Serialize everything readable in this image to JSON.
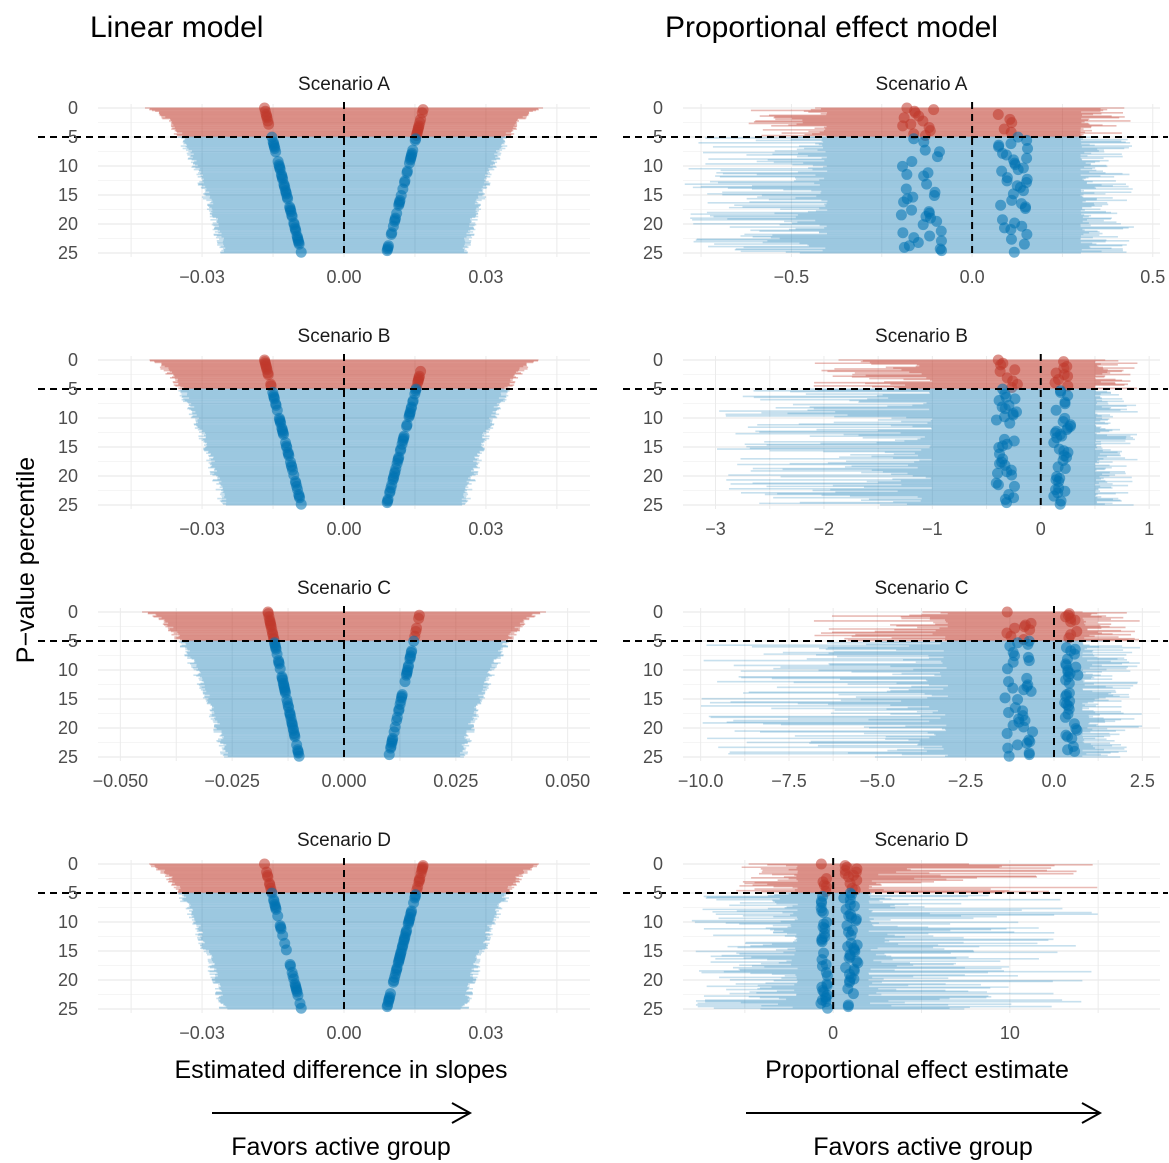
{
  "column_titles": [
    "Linear model",
    "Proportional effect model"
  ],
  "y_axis_title": "P−value percentile",
  "x_axis_titles": [
    "Estimated difference in slopes",
    "Proportional effect estimate"
  ],
  "favors_label": "Favors active group",
  "colors": {
    "significant": "#c0392b",
    "nonsignificant": "#0072b2",
    "grid": "#ebebeb"
  },
  "chart_data": [
    {
      "type": "scatter",
      "model": "Linear model",
      "title": "Scenario A",
      "xlim": [
        -0.052,
        0.052
      ],
      "ylim": [
        0,
        25
      ],
      "y_reversed": true,
      "x_ticks": [
        {
          "v": -0.03,
          "label": "−0.03"
        },
        {
          "v": 0,
          "label": "0.00"
        },
        {
          "v": 0.03,
          "label": "0.03"
        }
      ],
      "y_ticks": [
        0,
        5,
        10,
        15,
        20,
        25
      ],
      "threshold_percentile": 5,
      "null_value": 0,
      "estimate_centers": [
        -0.009,
        0.009
      ],
      "interval_halfwidth_at_25": 0.0255,
      "interval_halfwidth_at_0": 0.042
    },
    {
      "type": "scatter",
      "model": "Proportional effect model",
      "title": "Scenario A",
      "xlim": [
        -0.8,
        0.52
      ],
      "ylim": [
        0,
        25
      ],
      "y_reversed": true,
      "x_ticks": [
        {
          "v": -0.5,
          "label": "−0.5"
        },
        {
          "v": 0,
          "label": "0.0"
        },
        {
          "v": 0.5,
          "label": "0.5"
        }
      ],
      "y_ticks": [
        0,
        5,
        10,
        15,
        20,
        25
      ],
      "threshold_percentile": 5,
      "null_value": 0,
      "estimate_centers": [
        -0.14,
        0.11
      ],
      "interval_low_range": [
        -0.8,
        -0.4
      ],
      "interval_high_range": [
        0.3,
        0.45
      ]
    },
    {
      "type": "scatter",
      "model": "Linear model",
      "title": "Scenario B",
      "xlim": [
        -0.052,
        0.052
      ],
      "ylim": [
        0,
        25
      ],
      "y_reversed": true,
      "x_ticks": [
        {
          "v": -0.03,
          "label": "−0.03"
        },
        {
          "v": 0,
          "label": "0.00"
        },
        {
          "v": 0.03,
          "label": "0.03"
        }
      ],
      "y_ticks": [
        0,
        5,
        10,
        15,
        20,
        25
      ],
      "threshold_percentile": 5,
      "null_value": 0,
      "estimate_centers": [
        -0.009,
        0.009
      ],
      "interval_halfwidth_at_25": 0.0255,
      "interval_halfwidth_at_0": 0.042
    },
    {
      "type": "scatter",
      "model": "Proportional effect model",
      "title": "Scenario B",
      "xlim": [
        -3.3,
        1.1
      ],
      "ylim": [
        0,
        25
      ],
      "y_reversed": true,
      "x_ticks": [
        {
          "v": -3,
          "label": "−3"
        },
        {
          "v": -2,
          "label": "−2"
        },
        {
          "v": -1,
          "label": "−1"
        },
        {
          "v": 0,
          "label": "0"
        },
        {
          "v": 1,
          "label": "1"
        }
      ],
      "y_ticks": [
        0,
        5,
        10,
        15,
        20,
        25
      ],
      "threshold_percentile": 5,
      "null_value": 0,
      "estimate_centers": [
        -0.3,
        0.2
      ],
      "interval_low_range": [
        -3.0,
        -1.0
      ],
      "interval_high_range": [
        0.5,
        0.9
      ]
    },
    {
      "type": "scatter",
      "model": "Linear model",
      "title": "Scenario C",
      "xlim": [
        -0.055,
        0.055
      ],
      "ylim": [
        0,
        25
      ],
      "y_reversed": true,
      "x_ticks": [
        {
          "v": -0.05,
          "label": "−0.050"
        },
        {
          "v": -0.025,
          "label": "−0.025"
        },
        {
          "v": 0,
          "label": "0.000"
        },
        {
          "v": 0.025,
          "label": "0.025"
        },
        {
          "v": 0.05,
          "label": "0.050"
        }
      ],
      "y_ticks": [
        0,
        5,
        10,
        15,
        20,
        25
      ],
      "threshold_percentile": 5,
      "null_value": 0,
      "estimate_centers": [
        -0.01,
        0.01
      ],
      "interval_halfwidth_at_25": 0.0265,
      "interval_halfwidth_at_0": 0.045
    },
    {
      "type": "scatter",
      "model": "Proportional effect model",
      "title": "Scenario C",
      "xlim": [
        -10.5,
        3.0
      ],
      "ylim": [
        0,
        25
      ],
      "y_reversed": true,
      "x_ticks": [
        {
          "v": -10,
          "label": "−10.0"
        },
        {
          "v": -7.5,
          "label": "−7.5"
        },
        {
          "v": -5,
          "label": "−5.0"
        },
        {
          "v": -2.5,
          "label": "−2.5"
        },
        {
          "v": 0,
          "label": "0.0"
        },
        {
          "v": 2.5,
          "label": "2.5"
        }
      ],
      "y_ticks": [
        0,
        5,
        10,
        15,
        20,
        25
      ],
      "threshold_percentile": 5,
      "null_value": 0,
      "estimate_centers": [
        -1.0,
        0.5
      ],
      "interval_low_range": [
        -10.0,
        -3.0
      ],
      "interval_high_range": [
        0.8,
        2.5
      ]
    },
    {
      "type": "scatter",
      "model": "Linear model",
      "title": "Scenario D",
      "xlim": [
        -0.052,
        0.052
      ],
      "ylim": [
        0,
        25
      ],
      "y_reversed": true,
      "x_ticks": [
        {
          "v": -0.03,
          "label": "−0.03"
        },
        {
          "v": 0,
          "label": "0.00"
        },
        {
          "v": 0.03,
          "label": "0.03"
        }
      ],
      "y_ticks": [
        0,
        5,
        10,
        15,
        20,
        25
      ],
      "threshold_percentile": 5,
      "null_value": 0,
      "estimate_centers": [
        -0.009,
        0.009
      ],
      "interval_halfwidth_at_25": 0.0255,
      "interval_halfwidth_at_0": 0.042
    },
    {
      "type": "scatter",
      "model": "Proportional effect model",
      "title": "Scenario D",
      "xlim": [
        -8.5,
        18.5
      ],
      "ylim": [
        0,
        25
      ],
      "y_reversed": true,
      "x_ticks": [
        {
          "v": 0,
          "label": "0"
        },
        {
          "v": 10,
          "label": "10"
        }
      ],
      "y_ticks": [
        0,
        5,
        10,
        15,
        20,
        25
      ],
      "threshold_percentile": 5,
      "null_value": 0,
      "estimate_centers": [
        -0.5,
        1.0
      ],
      "interval_low_range": [
        -8.0,
        -2.0
      ],
      "interval_high_range": [
        2.0,
        15.0
      ]
    }
  ]
}
